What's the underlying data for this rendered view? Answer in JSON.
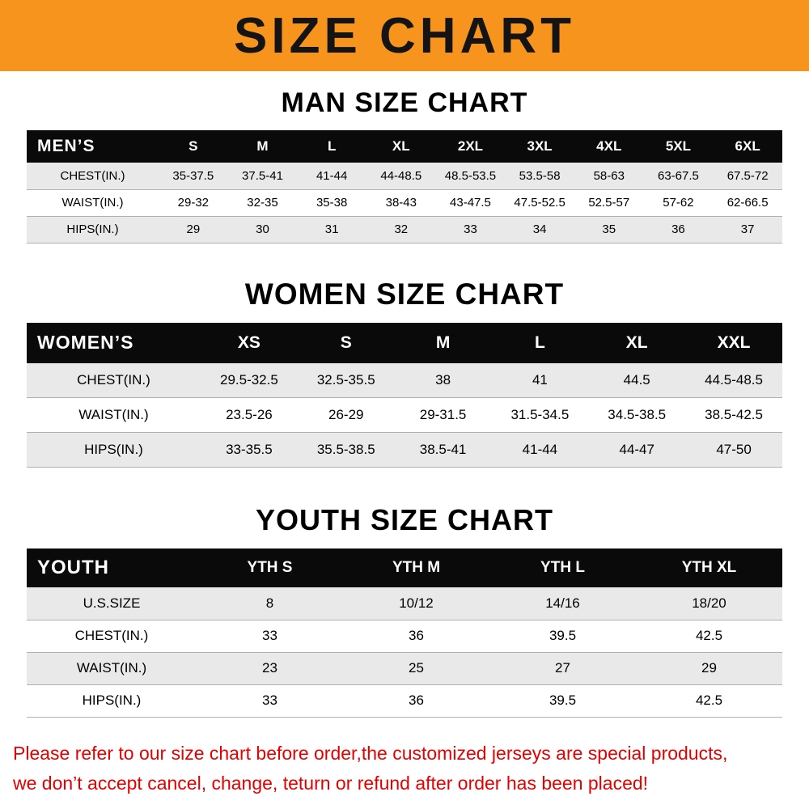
{
  "banner": {
    "title": "SIZE CHART",
    "bg_color": "#f7941d",
    "title_color": "#141414"
  },
  "chart_data": [
    {
      "type": "table",
      "title": "MAN SIZE CHART",
      "corner_label": "MEN’S",
      "columns": [
        "S",
        "M",
        "L",
        "XL",
        "2XL",
        "3XL",
        "4XL",
        "5XL",
        "6XL"
      ],
      "rows": [
        {
          "label": "CHEST(IN.)",
          "values": [
            "35-37.5",
            "37.5-41",
            "41-44",
            "44-48.5",
            "48.5-53.5",
            "53.5-58",
            "58-63",
            "63-67.5",
            "67.5-72"
          ]
        },
        {
          "label": "WAIST(IN.)",
          "values": [
            "29-32",
            "32-35",
            "35-38",
            "38-43",
            "43-47.5",
            "47.5-52.5",
            "52.5-57",
            "57-62",
            "62-66.5"
          ]
        },
        {
          "label": "HIPS(IN.)",
          "values": [
            "29",
            "30",
            "31",
            "32",
            "33",
            "34",
            "35",
            "36",
            "37"
          ]
        }
      ]
    },
    {
      "type": "table",
      "title": "WOMEN SIZE CHART",
      "corner_label": "WOMEN’S",
      "columns": [
        "XS",
        "S",
        "M",
        "L",
        "XL",
        "XXL"
      ],
      "rows": [
        {
          "label": "CHEST(IN.)",
          "values": [
            "29.5-32.5",
            "32.5-35.5",
            "38",
            "41",
            "44.5",
            "44.5-48.5"
          ]
        },
        {
          "label": "WAIST(IN.)",
          "values": [
            "23.5-26",
            "26-29",
            "29-31.5",
            "31.5-34.5",
            "34.5-38.5",
            "38.5-42.5"
          ]
        },
        {
          "label": "HIPS(IN.)",
          "values": [
            "33-35.5",
            "35.5-38.5",
            "38.5-41",
            "41-44",
            "44-47",
            "47-50"
          ]
        }
      ]
    },
    {
      "type": "table",
      "title": "YOUTH SIZE CHART",
      "corner_label": "YOUTH",
      "columns": [
        "YTH S",
        "YTH M",
        "YTH L",
        "YTH XL"
      ],
      "rows": [
        {
          "label": "U.S.SIZE",
          "values": [
            "8",
            "10/12",
            "14/16",
            "18/20"
          ]
        },
        {
          "label": "CHEST(IN.)",
          "values": [
            "33",
            "36",
            "39.5",
            "42.5"
          ]
        },
        {
          "label": "WAIST(IN.)",
          "values": [
            "23",
            "25",
            "27",
            "29"
          ]
        },
        {
          "label": "HIPS(IN.)",
          "values": [
            "33",
            "36",
            "39.5",
            "42.5"
          ]
        }
      ]
    }
  ],
  "footer": {
    "line1": "Please refer to our size chart before order,the customized jerseys are special products,",
    "line2": "we don’t accept cancel, change, teturn or refund after order has been placed!",
    "text_color": "#e50000"
  },
  "colors": {
    "banner_orange": "#f7941d",
    "table_header_bg": "#0a0a0a",
    "row_stripe": "#e9e9e9"
  }
}
